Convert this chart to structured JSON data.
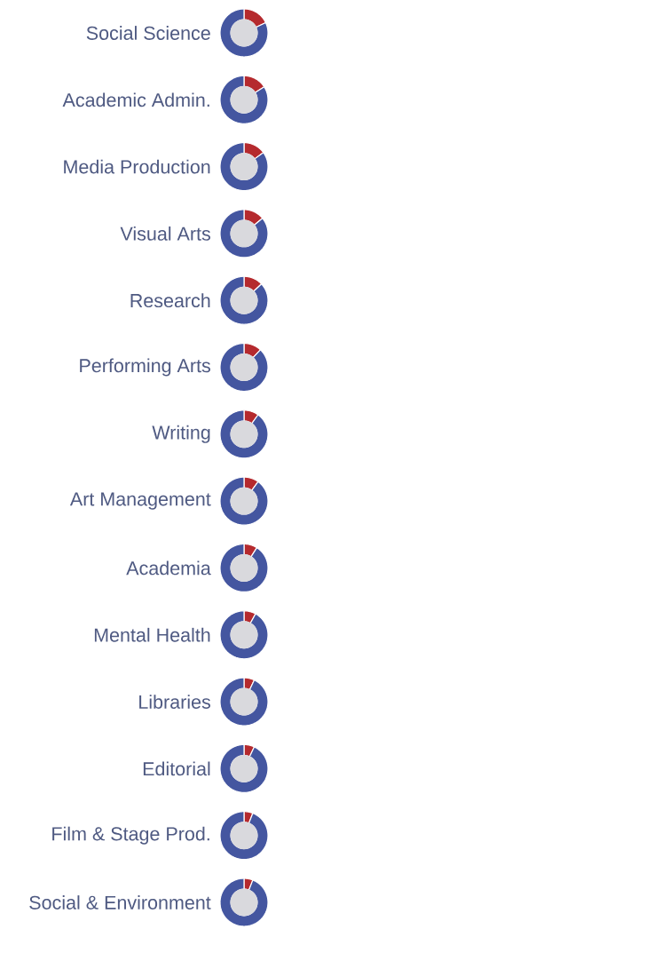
{
  "chart_data": [
    {
      "type": "donut",
      "title": "Social Science",
      "categories": [
        null,
        null
      ],
      "values": [
        18,
        82
      ],
      "colors": [
        "#b52a2e",
        "#4456a0"
      ]
    },
    {
      "type": "donut",
      "title": "Academic Admin.",
      "categories": [
        null,
        null
      ],
      "values": [
        16,
        84
      ],
      "colors": [
        "#b52a2e",
        "#4456a0"
      ]
    },
    {
      "type": "donut",
      "title": "Media Production",
      "categories": [
        null,
        null
      ],
      "values": [
        15,
        85
      ],
      "colors": [
        "#b52a2e",
        "#4456a0"
      ]
    },
    {
      "type": "donut",
      "title": "Visual Arts",
      "categories": [
        null,
        null
      ],
      "values": [
        14,
        86
      ],
      "colors": [
        "#b52a2e",
        "#4456a0"
      ]
    },
    {
      "type": "donut",
      "title": "Research",
      "categories": [
        null,
        null
      ],
      "values": [
        13,
        87
      ],
      "colors": [
        "#b52a2e",
        "#4456a0"
      ]
    },
    {
      "type": "donut",
      "title": "Performing Arts",
      "categories": [
        null,
        null
      ],
      "values": [
        12,
        88
      ],
      "colors": [
        "#b52a2e",
        "#4456a0"
      ]
    },
    {
      "type": "donut",
      "title": "Writing",
      "categories": [
        null,
        null
      ],
      "values": [
        10,
        90
      ],
      "colors": [
        "#b52a2e",
        "#4456a0"
      ]
    },
    {
      "type": "donut",
      "title": "Art Management",
      "categories": [
        null,
        null
      ],
      "values": [
        10,
        90
      ],
      "colors": [
        "#b52a2e",
        "#4456a0"
      ]
    },
    {
      "type": "donut",
      "title": "Academia",
      "categories": [
        null,
        null
      ],
      "values": [
        9,
        91
      ],
      "colors": [
        "#b52a2e",
        "#4456a0"
      ]
    },
    {
      "type": "donut",
      "title": "Mental Health",
      "categories": [
        null,
        null
      ],
      "values": [
        8,
        92
      ],
      "colors": [
        "#b52a2e",
        "#4456a0"
      ]
    },
    {
      "type": "donut",
      "title": "Libraries",
      "categories": [
        null,
        null
      ],
      "values": [
        7,
        93
      ],
      "colors": [
        "#b52a2e",
        "#4456a0"
      ]
    },
    {
      "type": "donut",
      "title": "Editorial",
      "categories": [
        null,
        null
      ],
      "values": [
        7,
        93
      ],
      "colors": [
        "#b52a2e",
        "#4456a0"
      ]
    },
    {
      "type": "donut",
      "title": "Film & Stage Prod.",
      "categories": [
        null,
        null
      ],
      "values": [
        6,
        94
      ],
      "colors": [
        "#b52a2e",
        "#4456a0"
      ]
    },
    {
      "type": "donut",
      "title": "Social & Environment",
      "categories": [
        null,
        null
      ],
      "values": [
        6,
        94
      ],
      "colors": [
        "#b52a2e",
        "#4456a0"
      ]
    }
  ]
}
